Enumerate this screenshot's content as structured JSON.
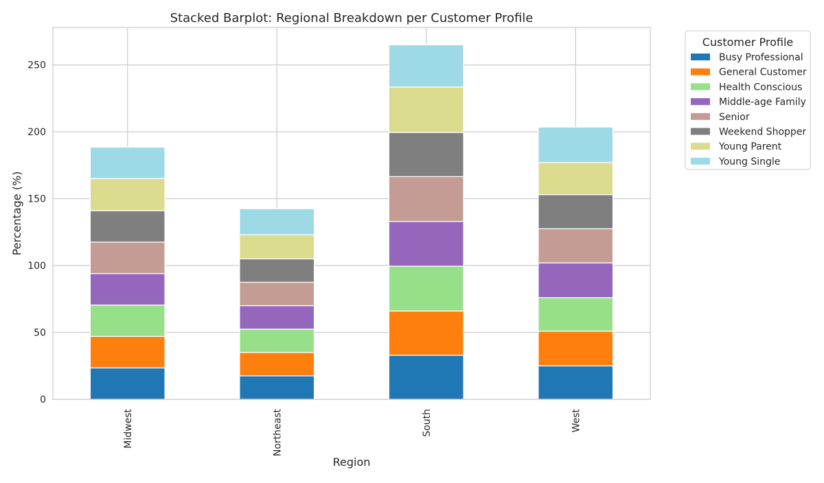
{
  "chart_data": {
    "type": "bar",
    "stacked": true,
    "title": "Stacked Barplot: Regional Breakdown per Customer Profile",
    "xlabel": "Region",
    "ylabel": "Percentage (%)",
    "categories": [
      "Midwest",
      "Northeast",
      "South",
      "West"
    ],
    "ylim": [
      0,
      278
    ],
    "yticks": [
      0,
      50,
      100,
      150,
      200,
      250
    ],
    "grid": true,
    "legend": {
      "title": "Customer Profile",
      "placement": "outside-top-right"
    },
    "series": [
      {
        "name": "Busy Professional",
        "color": "#1f77b4",
        "values": [
          23.5,
          17.5,
          33.0,
          25.0
        ]
      },
      {
        "name": "General Customer",
        "color": "#ff7f0e",
        "values": [
          23.5,
          17.5,
          33.0,
          26.0
        ]
      },
      {
        "name": "Health Conscious",
        "color": "#98df8a",
        "values": [
          23.5,
          17.5,
          33.5,
          25.0
        ]
      },
      {
        "name": "Middle-age Family",
        "color": "#9467bd",
        "values": [
          23.5,
          17.5,
          33.5,
          26.0
        ]
      },
      {
        "name": "Senior",
        "color": "#c49c94",
        "values": [
          23.5,
          17.5,
          33.5,
          25.5
        ]
      },
      {
        "name": "Weekend Shopper",
        "color": "#7f7f7f",
        "values": [
          23.5,
          17.5,
          33.0,
          25.5
        ]
      },
      {
        "name": "Young Parent",
        "color": "#dbdb8d",
        "values": [
          24.0,
          18.0,
          34.0,
          24.0
        ]
      },
      {
        "name": "Young Single",
        "color": "#9edae5",
        "values": [
          23.5,
          19.5,
          31.5,
          26.5
        ]
      }
    ]
  }
}
